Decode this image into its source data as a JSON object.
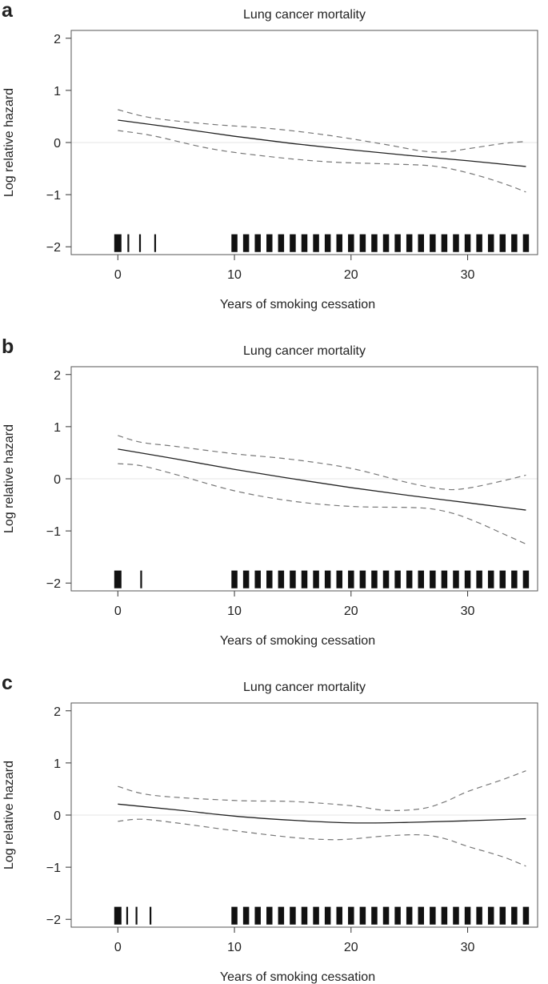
{
  "chart_data": [
    {
      "panel_label": "a",
      "type": "line",
      "title": "Lung cancer mortality",
      "xlabel": "Years of smoking cessation",
      "ylabel": "Log relative hazard",
      "xlim": [
        -4,
        36
      ],
      "ylim": [
        -2.15,
        2.15
      ],
      "xticks": [
        0,
        10,
        20,
        30
      ],
      "yticks": [
        -2,
        -1,
        0,
        1,
        2
      ],
      "ytick_labels": [
        "−2",
        "−1",
        "0",
        "1",
        "2"
      ],
      "reference_line_y": 0,
      "grid": false,
      "legend": "none",
      "colors": {
        "estimate": "#222222",
        "ci": "#777777",
        "rug": "#111111",
        "reference": "#e6e6e6"
      },
      "series": [
        {
          "role": "estimate",
          "style": "solid",
          "x": [
            0,
            5,
            10,
            15,
            20,
            25,
            30,
            35
          ],
          "y": [
            0.43,
            0.28,
            0.12,
            -0.02,
            -0.14,
            -0.25,
            -0.35,
            -0.46
          ]
        },
        {
          "role": "ci-upper",
          "style": "dashed",
          "x": [
            0,
            3,
            8,
            13,
            18,
            23,
            26,
            28,
            30,
            33,
            35
          ],
          "y": [
            0.63,
            0.47,
            0.35,
            0.27,
            0.14,
            -0.04,
            -0.16,
            -0.18,
            -0.12,
            -0.02,
            0.02
          ]
        },
        {
          "role": "ci-lower",
          "style": "dashed",
          "x": [
            0,
            3,
            8,
            13,
            18,
            23,
            27,
            30,
            33,
            35
          ],
          "y": [
            0.23,
            0.13,
            -0.12,
            -0.27,
            -0.37,
            -0.41,
            -0.45,
            -0.58,
            -0.78,
            -0.95
          ]
        }
      ],
      "rug": {
        "thick": [
          0
        ],
        "thin": [
          0.9,
          1.9,
          3.2
        ],
        "regular_start": 10,
        "regular_end": 35,
        "regular_step": 1
      }
    },
    {
      "panel_label": "b",
      "type": "line",
      "title": "Lung cancer mortality",
      "xlabel": "Years of smoking cessation",
      "ylabel": "Log relative hazard",
      "xlim": [
        -4,
        36
      ],
      "ylim": [
        -2.15,
        2.15
      ],
      "xticks": [
        0,
        10,
        20,
        30
      ],
      "yticks": [
        -2,
        -1,
        0,
        1,
        2
      ],
      "ytick_labels": [
        "−2",
        "−1",
        "0",
        "1",
        "2"
      ],
      "reference_line_y": 0,
      "grid": false,
      "legend": "none",
      "colors": {
        "estimate": "#222222",
        "ci": "#777777",
        "rug": "#111111",
        "reference": "#e6e6e6"
      },
      "series": [
        {
          "role": "estimate",
          "style": "solid",
          "x": [
            0,
            5,
            10,
            15,
            20,
            25,
            30,
            35
          ],
          "y": [
            0.57,
            0.38,
            0.18,
            0.0,
            -0.17,
            -0.32,
            -0.46,
            -0.6
          ]
        },
        {
          "role": "ci-upper",
          "style": "dashed",
          "x": [
            0,
            2,
            5,
            10,
            15,
            20,
            25,
            28,
            30,
            33,
            35
          ],
          "y": [
            0.83,
            0.7,
            0.62,
            0.48,
            0.37,
            0.2,
            -0.08,
            -0.2,
            -0.18,
            -0.04,
            0.07
          ]
        },
        {
          "role": "ci-lower",
          "style": "dashed",
          "x": [
            0,
            2,
            5,
            10,
            15,
            20,
            25,
            27,
            29,
            31,
            33,
            35
          ],
          "y": [
            0.29,
            0.25,
            0.08,
            -0.23,
            -0.43,
            -0.53,
            -0.55,
            -0.58,
            -0.68,
            -0.85,
            -1.05,
            -1.25
          ]
        }
      ],
      "rug": {
        "thick": [
          0
        ],
        "thin": [
          2.0
        ],
        "regular_start": 10,
        "regular_end": 35,
        "regular_step": 1
      }
    },
    {
      "panel_label": "c",
      "type": "line",
      "title": "Lung cancer mortality",
      "xlabel": "Years of smoking cessation",
      "ylabel": "Log relative hazard",
      "xlim": [
        -4,
        36
      ],
      "ylim": [
        -2.15,
        2.15
      ],
      "xticks": [
        0,
        10,
        20,
        30
      ],
      "yticks": [
        -2,
        -1,
        0,
        1,
        2
      ],
      "ytick_labels": [
        "−2",
        "−1",
        "0",
        "1",
        "2"
      ],
      "reference_line_y": 0,
      "grid": false,
      "legend": "none",
      "colors": {
        "estimate": "#222222",
        "ci": "#777777",
        "rug": "#111111",
        "reference": "#e6e6e6"
      },
      "series": [
        {
          "role": "estimate",
          "style": "solid",
          "x": [
            0,
            5,
            10,
            15,
            20,
            25,
            30,
            35
          ],
          "y": [
            0.21,
            0.1,
            -0.02,
            -0.1,
            -0.15,
            -0.14,
            -0.11,
            -0.07
          ]
        },
        {
          "role": "ci-upper",
          "style": "dashed",
          "x": [
            0,
            3,
            10,
            15,
            20,
            23,
            26,
            28,
            30,
            33,
            35
          ],
          "y": [
            0.55,
            0.38,
            0.28,
            0.26,
            0.18,
            0.09,
            0.12,
            0.25,
            0.45,
            0.68,
            0.85
          ]
        },
        {
          "role": "ci-lower",
          "style": "dashed",
          "x": [
            0,
            2,
            5,
            10,
            15,
            18,
            20,
            23,
            26,
            28,
            30,
            33,
            35
          ],
          "y": [
            -0.12,
            -0.08,
            -0.15,
            -0.3,
            -0.43,
            -0.47,
            -0.46,
            -0.4,
            -0.38,
            -0.45,
            -0.6,
            -0.8,
            -0.98
          ]
        }
      ],
      "rug": {
        "thick": [
          0
        ],
        "thin": [
          0.8,
          1.6,
          2.8
        ],
        "regular_start": 10,
        "regular_end": 35,
        "regular_step": 1
      }
    }
  ]
}
